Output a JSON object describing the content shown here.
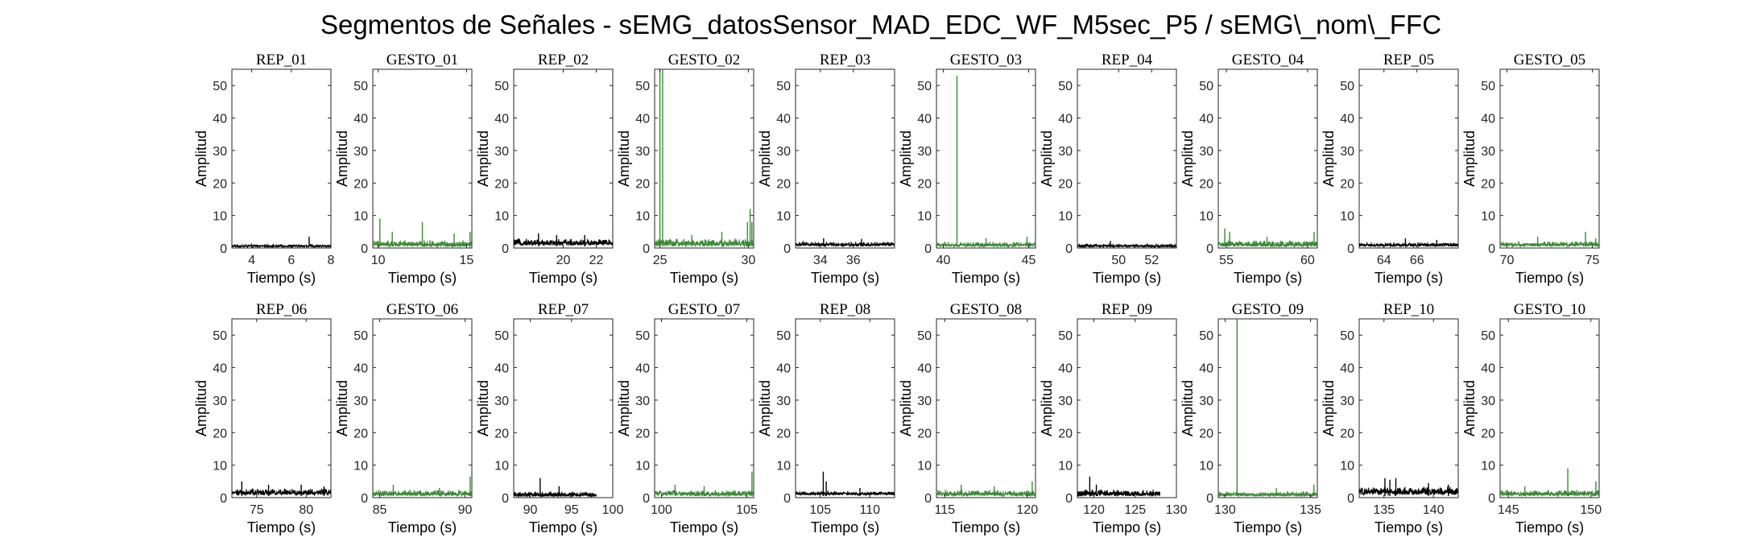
{
  "figure": {
    "title": "Segmentos de Señales - sEMG_datosSensor_MAD_EDC_WF_M5sec_P5 / sEMG\\_nom\\_FFC"
  },
  "colors": {
    "rep": "#000000",
    "gesto": "#3a8a35"
  },
  "chart_data": [
    {
      "type": "line",
      "title": "REP_01",
      "xlabel": "Tiempo (s)",
      "ylabel": "Amplitud",
      "xlim": [
        3,
        8
      ],
      "ylim": [
        0,
        55
      ],
      "xticks": [
        4,
        6,
        8
      ],
      "yticks": [
        0,
        10,
        20,
        30,
        40,
        50
      ],
      "color": "rep",
      "baseline": [
        0.3,
        1.2
      ],
      "spikes": [
        [
          6.9,
          3.5
        ]
      ]
    },
    {
      "type": "line",
      "title": "GESTO_01",
      "xlabel": "Tiempo (s)",
      "ylabel": "Amplitud",
      "xlim": [
        9.7,
        15.3
      ],
      "ylim": [
        0,
        55
      ],
      "xticks": [
        10,
        15
      ],
      "yticks": [
        0,
        10,
        20,
        30,
        40,
        50
      ],
      "color": "gesto",
      "baseline": [
        0.4,
        2.5
      ],
      "spikes": [
        [
          10.1,
          9
        ],
        [
          10.8,
          5
        ],
        [
          12.5,
          8
        ],
        [
          14.3,
          4.5
        ],
        [
          15.2,
          5
        ]
      ]
    },
    {
      "type": "line",
      "title": "REP_02",
      "xlabel": "Tiempo (s)",
      "ylabel": "Amplitud",
      "xlim": [
        17,
        23
      ],
      "ylim": [
        0,
        55
      ],
      "xticks": [
        20,
        22
      ],
      "yticks": [
        0,
        10,
        20,
        30,
        40,
        50
      ],
      "color": "rep",
      "baseline": [
        0.8,
        3
      ],
      "spikes": [
        [
          18.5,
          4.5
        ],
        [
          19.6,
          4
        ],
        [
          21.3,
          4
        ]
      ]
    },
    {
      "type": "line",
      "title": "GESTO_02",
      "xlabel": "Tiempo (s)",
      "ylabel": "Amplitud",
      "xlim": [
        24.7,
        30.3
      ],
      "ylim": [
        0,
        55
      ],
      "xticks": [
        25,
        30
      ],
      "yticks": [
        0,
        10,
        20,
        30,
        40,
        50
      ],
      "color": "gesto",
      "baseline": [
        0.5,
        3
      ],
      "spikes": [
        [
          25.0,
          55
        ],
        [
          25.15,
          55
        ],
        [
          26.8,
          4
        ],
        [
          28.5,
          5
        ],
        [
          29.95,
          8
        ],
        [
          30.1,
          12
        ],
        [
          30.2,
          8
        ]
      ]
    },
    {
      "type": "line",
      "title": "REP_03",
      "xlabel": "Tiempo (s)",
      "ylabel": "Amplitud",
      "xlim": [
        32.5,
        38.5
      ],
      "ylim": [
        0,
        55
      ],
      "xticks": [
        34,
        36
      ],
      "yticks": [
        0,
        10,
        20,
        30,
        40,
        50
      ],
      "color": "rep",
      "baseline": [
        0.6,
        2
      ],
      "spikes": [
        [
          34.2,
          3
        ],
        [
          36.5,
          2.8
        ]
      ]
    },
    {
      "type": "line",
      "title": "GESTO_03",
      "xlabel": "Tiempo (s)",
      "ylabel": "Amplitud",
      "xlim": [
        39.6,
        45.4
      ],
      "ylim": [
        0,
        55
      ],
      "xticks": [
        40,
        45
      ],
      "yticks": [
        0,
        10,
        20,
        30,
        40,
        50
      ],
      "color": "gesto",
      "baseline": [
        0.4,
        2
      ],
      "spikes": [
        [
          40.8,
          53
        ],
        [
          42.5,
          3
        ],
        [
          44.9,
          3.5
        ]
      ]
    },
    {
      "type": "line",
      "title": "REP_04",
      "xlabel": "Tiempo (s)",
      "ylabel": "Amplitud",
      "xlim": [
        47.5,
        53.5
      ],
      "ylim": [
        0,
        55
      ],
      "xticks": [
        50,
        52
      ],
      "yticks": [
        0,
        10,
        20,
        30,
        40,
        50
      ],
      "color": "rep",
      "baseline": [
        0.3,
        1.3
      ],
      "spikes": [
        [
          49.5,
          2.2
        ]
      ]
    },
    {
      "type": "line",
      "title": "GESTO_04",
      "xlabel": "Tiempo (s)",
      "ylabel": "Amplitud",
      "xlim": [
        54.5,
        60.6
      ],
      "ylim": [
        0,
        55
      ],
      "xticks": [
        55,
        60
      ],
      "yticks": [
        0,
        10,
        20,
        30,
        40,
        50
      ],
      "color": "gesto",
      "baseline": [
        0.4,
        2.5
      ],
      "spikes": [
        [
          54.9,
          6
        ],
        [
          55.2,
          5
        ],
        [
          57.5,
          3.5
        ],
        [
          60.4,
          5
        ]
      ]
    },
    {
      "type": "line",
      "title": "REP_05",
      "xlabel": "Tiempo (s)",
      "ylabel": "Amplitud",
      "xlim": [
        62.5,
        68.5
      ],
      "ylim": [
        0,
        55
      ],
      "xticks": [
        64,
        66
      ],
      "yticks": [
        0,
        10,
        20,
        30,
        40,
        50
      ],
      "color": "rep",
      "baseline": [
        0.5,
        1.8
      ],
      "spikes": [
        [
          65.3,
          3
        ],
        [
          67.2,
          2.5
        ]
      ]
    },
    {
      "type": "line",
      "title": "GESTO_05",
      "xlabel": "Tiempo (s)",
      "ylabel": "Amplitud",
      "xlim": [
        69.6,
        75.4
      ],
      "ylim": [
        0,
        55
      ],
      "xticks": [
        70,
        75
      ],
      "yticks": [
        0,
        10,
        20,
        30,
        40,
        50
      ],
      "color": "gesto",
      "baseline": [
        0.5,
        2.2
      ],
      "spikes": [
        [
          71.8,
          3.5
        ],
        [
          74.6,
          5
        ],
        [
          75.2,
          3
        ]
      ]
    },
    {
      "type": "line",
      "title": "REP_06",
      "xlabel": "Tiempo (s)",
      "ylabel": "Amplitud",
      "xlim": [
        72.5,
        82.5
      ],
      "ylim": [
        0,
        55
      ],
      "xticks": [
        75,
        80
      ],
      "yticks": [
        0,
        10,
        20,
        30,
        40,
        50
      ],
      "color": "rep",
      "baseline": [
        0.8,
        3
      ],
      "spikes": [
        [
          73.5,
          5
        ],
        [
          76.2,
          4
        ],
        [
          79.5,
          4
        ],
        [
          81.8,
          3.5
        ]
      ]
    },
    {
      "type": "line",
      "title": "GESTO_06",
      "xlabel": "Tiempo (s)",
      "ylabel": "Amplitud",
      "xlim": [
        84.6,
        90.4
      ],
      "ylim": [
        0,
        55
      ],
      "xticks": [
        85,
        90
      ],
      "yticks": [
        0,
        10,
        20,
        30,
        40,
        50
      ],
      "color": "gesto",
      "baseline": [
        0.5,
        2.5
      ],
      "spikes": [
        [
          85.8,
          4
        ],
        [
          88.5,
          3
        ],
        [
          90.3,
          6.5
        ]
      ]
    },
    {
      "type": "line",
      "title": "REP_07",
      "xlabel": "Tiempo (s)",
      "ylabel": "Amplitud",
      "xlim": [
        88,
        100
      ],
      "ylim": [
        0,
        55
      ],
      "xticks": [
        90,
        95,
        100
      ],
      "yticks": [
        0,
        10,
        20,
        30,
        40,
        50
      ],
      "color": "rep",
      "baseline": [
        0.3,
        2
      ],
      "spikes": [
        [
          91.2,
          6
        ],
        [
          93.5,
          3.5
        ]
      ],
      "endx": 98
    },
    {
      "type": "line",
      "title": "GESTO_07",
      "xlabel": "Tiempo (s)",
      "ylabel": "Amplitud",
      "xlim": [
        99.6,
        105.4
      ],
      "ylim": [
        0,
        55
      ],
      "xticks": [
        100,
        105
      ],
      "yticks": [
        0,
        10,
        20,
        30,
        40,
        50
      ],
      "color": "gesto",
      "baseline": [
        0.5,
        2.5
      ],
      "spikes": [
        [
          100.8,
          4
        ],
        [
          102.5,
          3.5
        ],
        [
          105.3,
          8
        ]
      ]
    },
    {
      "type": "line",
      "title": "REP_08",
      "xlabel": "Tiempo (s)",
      "ylabel": "Amplitud",
      "xlim": [
        102.5,
        112.5
      ],
      "ylim": [
        0,
        55
      ],
      "xticks": [
        105,
        110
      ],
      "yticks": [
        0,
        10,
        20,
        30,
        40,
        50
      ],
      "color": "rep",
      "baseline": [
        0.8,
        2
      ],
      "spikes": [
        [
          105.3,
          8
        ],
        [
          105.6,
          5
        ],
        [
          109,
          3
        ]
      ]
    },
    {
      "type": "line",
      "title": "GESTO_08",
      "xlabel": "Tiempo (s)",
      "ylabel": "Amplitud",
      "xlim": [
        114.5,
        120.5
      ],
      "ylim": [
        0,
        55
      ],
      "xticks": [
        115,
        120
      ],
      "yticks": [
        0,
        10,
        20,
        30,
        40,
        50
      ],
      "color": "gesto",
      "baseline": [
        0.5,
        2.5
      ],
      "spikes": [
        [
          116,
          4
        ],
        [
          118,
          3.5
        ],
        [
          120.3,
          5
        ]
      ]
    },
    {
      "type": "line",
      "title": "REP_09",
      "xlabel": "Tiempo (s)",
      "ylabel": "Amplitud",
      "xlim": [
        118,
        130
      ],
      "ylim": [
        0,
        55
      ],
      "xticks": [
        120,
        125,
        130
      ],
      "yticks": [
        0,
        10,
        20,
        30,
        40,
        50
      ],
      "color": "rep",
      "baseline": [
        0.5,
        2.5
      ],
      "spikes": [
        [
          119.5,
          6.5
        ],
        [
          120.3,
          4
        ]
      ],
      "endx": 128
    },
    {
      "type": "line",
      "title": "GESTO_09",
      "xlabel": "Tiempo (s)",
      "ylabel": "Amplitud",
      "xlim": [
        129.6,
        135.4
      ],
      "ylim": [
        0,
        55
      ],
      "xticks": [
        130,
        135
      ],
      "yticks": [
        0,
        10,
        20,
        30,
        40,
        50
      ],
      "color": "gesto",
      "baseline": [
        0.4,
        2
      ],
      "spikes": [
        [
          130.7,
          55
        ],
        [
          133,
          3
        ],
        [
          135.2,
          4
        ]
      ]
    },
    {
      "type": "line",
      "title": "REP_10",
      "xlabel": "Tiempo (s)",
      "ylabel": "Amplitud",
      "xlim": [
        132.5,
        142.5
      ],
      "ylim": [
        0,
        55
      ],
      "xticks": [
        135,
        140
      ],
      "yticks": [
        0,
        10,
        20,
        30,
        40,
        50
      ],
      "color": "rep",
      "baseline": [
        0.8,
        3.5
      ],
      "spikes": [
        [
          135.1,
          6
        ],
        [
          135.6,
          5.5
        ],
        [
          136.2,
          6
        ],
        [
          139.5,
          4.5
        ],
        [
          141.5,
          4
        ]
      ]
    },
    {
      "type": "line",
      "title": "GESTO_10",
      "xlabel": "Tiempo (s)",
      "ylabel": "Amplitud",
      "xlim": [
        144.5,
        150.5
      ],
      "ylim": [
        0,
        55
      ],
      "xticks": [
        145,
        150
      ],
      "yticks": [
        0,
        10,
        20,
        30,
        40,
        50
      ],
      "color": "gesto",
      "baseline": [
        0.5,
        2.5
      ],
      "spikes": [
        [
          146,
          3.5
        ],
        [
          148.6,
          9
        ],
        [
          150.3,
          5
        ]
      ]
    }
  ]
}
